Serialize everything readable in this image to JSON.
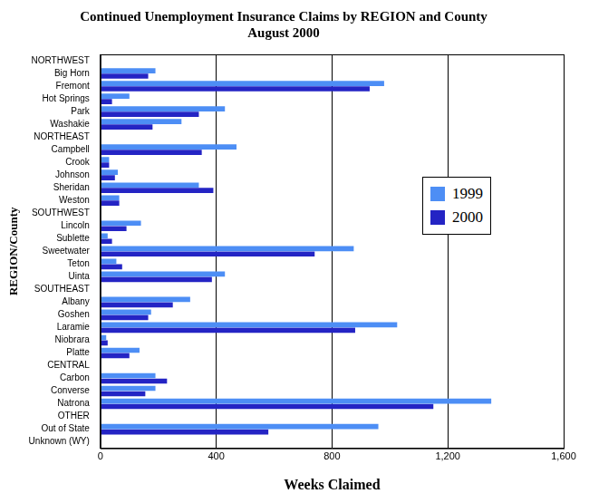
{
  "chart_data": {
    "type": "bar",
    "orientation": "horizontal",
    "title": "Continued Unemployment Insurance Claims by REGION and County",
    "subtitle": "August 2000",
    "xlabel": "Weeks Claimed",
    "ylabel": "REGION/County",
    "categories": [
      "NORTHWEST",
      "Big Horn",
      "Fremont",
      "Hot Springs",
      "Park",
      "Washakie",
      "NORTHEAST",
      "Campbell",
      "Crook",
      "Johnson",
      "Sheridan",
      "Weston",
      "SOUTHWEST",
      "Lincoln",
      "Sublette",
      "Sweetwater",
      "Teton",
      "Uinta",
      "SOUTHEAST",
      "Albany",
      "Goshen",
      "Laramie",
      "Niobrara",
      "Platte",
      "CENTRAL",
      "Carbon",
      "Converse",
      "Natrona",
      "OTHER",
      "Out of State",
      "Unknown (WY)"
    ],
    "series": [
      {
        "name": "1999",
        "color": "#4d8ef5",
        "values": [
          null,
          190,
          980,
          100,
          430,
          280,
          null,
          470,
          30,
          60,
          340,
          65,
          null,
          140,
          25,
          875,
          55,
          430,
          null,
          310,
          175,
          1025,
          20,
          135,
          null,
          190,
          190,
          1350,
          null,
          960,
          null
        ]
      },
      {
        "name": "2000",
        "color": "#2424c4",
        "values": [
          null,
          165,
          930,
          40,
          340,
          180,
          null,
          350,
          30,
          50,
          390,
          65,
          null,
          90,
          40,
          740,
          75,
          385,
          null,
          250,
          165,
          880,
          25,
          100,
          null,
          230,
          155,
          1150,
          null,
          580,
          null
        ]
      }
    ],
    "xlim": [
      0,
      1600
    ],
    "xticks": [
      0,
      400,
      800,
      {
        "value": 1200,
        "label": "1,200"
      },
      {
        "value": 1600,
        "label": "1,600"
      }
    ],
    "grid": true,
    "legend": "right"
  }
}
